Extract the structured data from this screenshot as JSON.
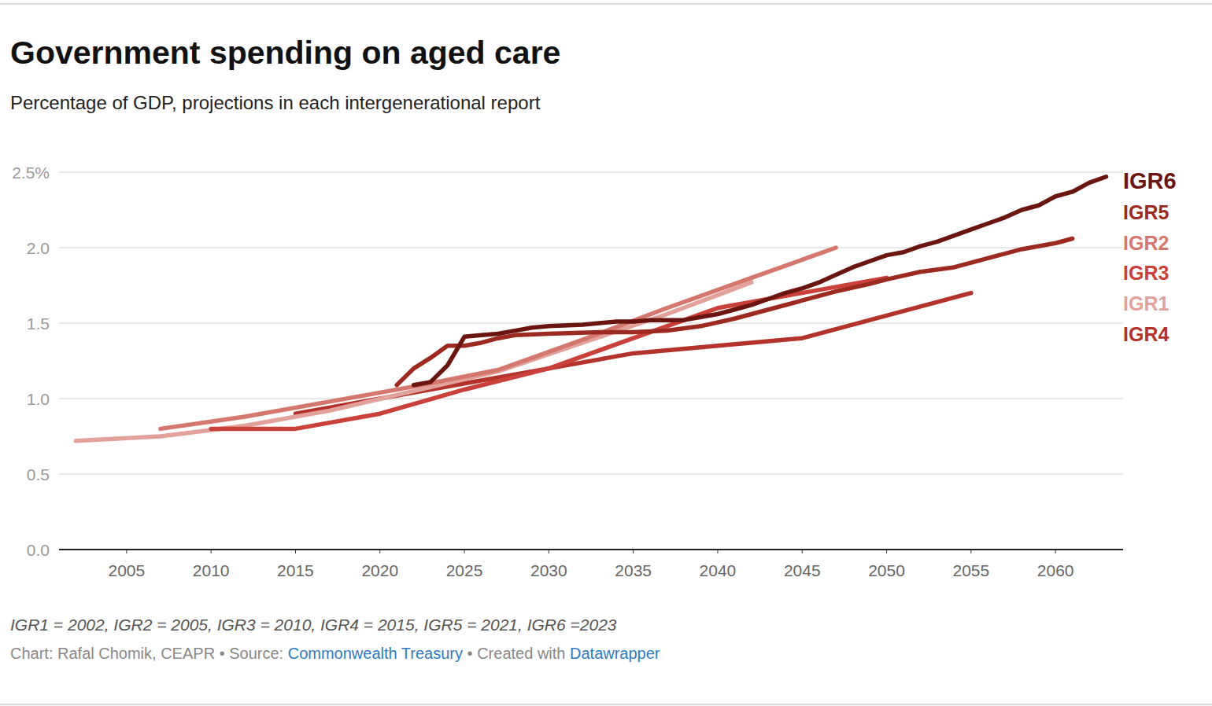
{
  "chart_data": {
    "type": "line",
    "title": "Government spending on aged care",
    "subtitle": "Percentage of GDP, projections in each intergenerational report",
    "note": "IGR1 = 2002, IGR2 = 2005, IGR3 = 2010, IGR4 = 2015, IGR5 = 2021, IGR6 =2023",
    "credit": "Chart: Rafal Chomik, CEAPR",
    "separator": "•",
    "source_label": "Source:",
    "source": "Commonwealth Treasury",
    "created_label": "Created with",
    "tool": "Datawrapper",
    "xlim": [
      2001,
      2064
    ],
    "xticks": [
      2005,
      2010,
      2015,
      2020,
      2025,
      2030,
      2035,
      2040,
      2045,
      2050,
      2055,
      2060
    ],
    "ylim": [
      0,
      2.5
    ],
    "yticks": [
      {
        "value": 0,
        "label": "0.0"
      },
      0.5,
      {
        "value": 1,
        "label": "1.0"
      },
      1.5,
      {
        "value": 2,
        "label": "2.0"
      },
      {
        "value": 2.5,
        "label": "2.5%"
      }
    ],
    "grid": true,
    "series": [
      {
        "name": "IGR6",
        "color": "#6b1510",
        "x": [
          2022,
          2023,
          2024,
          2025,
          2026,
          2027,
          2028,
          2029,
          2030,
          2032,
          2033,
          2034,
          2035,
          2036,
          2038,
          2039,
          2040,
          2041,
          2042,
          2043,
          2044,
          2045,
          2046,
          2047,
          2048,
          2049,
          2050,
          2051,
          2052,
          2053,
          2054,
          2055,
          2056,
          2057,
          2058,
          2059,
          2060,
          2061,
          2062,
          2063
        ],
        "values": [
          1.09,
          1.11,
          1.22,
          1.41,
          1.42,
          1.43,
          1.45,
          1.47,
          1.48,
          1.49,
          1.5,
          1.51,
          1.51,
          1.52,
          1.52,
          1.54,
          1.56,
          1.59,
          1.62,
          1.66,
          1.7,
          1.73,
          1.77,
          1.82,
          1.87,
          1.91,
          1.95,
          1.97,
          2.01,
          2.04,
          2.08,
          2.12,
          2.16,
          2.2,
          2.25,
          2.28,
          2.34,
          2.37,
          2.43,
          2.47
        ]
      },
      {
        "name": "IGR5",
        "color": "#9c2a20",
        "x": [
          2021,
          2022,
          2023,
          2024,
          2025,
          2026,
          2027,
          2028,
          2030,
          2033,
          2035,
          2037,
          2039,
          2041,
          2043,
          2045,
          2047,
          2049,
          2050,
          2052,
          2054,
          2056,
          2058,
          2060,
          2061
        ],
        "values": [
          1.09,
          1.2,
          1.27,
          1.35,
          1.35,
          1.37,
          1.4,
          1.42,
          1.43,
          1.44,
          1.44,
          1.45,
          1.48,
          1.53,
          1.59,
          1.65,
          1.71,
          1.76,
          1.79,
          1.84,
          1.87,
          1.93,
          1.99,
          2.03,
          2.06
        ]
      },
      {
        "name": "IGR2",
        "color": "#d4786f",
        "x": [
          2007,
          2012,
          2017,
          2022,
          2027,
          2032,
          2037,
          2042,
          2047
        ],
        "values": [
          0.8,
          0.88,
          0.98,
          1.08,
          1.19,
          1.39,
          1.6,
          1.8,
          2.0
        ]
      },
      {
        "name": "IGR3",
        "color": "#c9413a",
        "x": [
          2010,
          2015,
          2020,
          2025,
          2030,
          2035,
          2040,
          2045,
          2050
        ],
        "values": [
          0.8,
          0.8,
          0.9,
          1.06,
          1.2,
          1.4,
          1.6,
          1.7,
          1.8
        ]
      },
      {
        "name": "IGR1",
        "color": "#e2a29b",
        "x": [
          2002,
          2007,
          2012,
          2017,
          2022,
          2027,
          2032,
          2037,
          2042
        ],
        "values": [
          0.72,
          0.75,
          0.82,
          0.92,
          1.05,
          1.18,
          1.37,
          1.56,
          1.77
        ]
      },
      {
        "name": "IGR4",
        "color": "#b3322b",
        "x": [
          2015,
          2020,
          2025,
          2030,
          2035,
          2040,
          2045,
          2050,
          2055
        ],
        "values": [
          0.9,
          1.0,
          1.1,
          1.2,
          1.3,
          1.35,
          1.4,
          1.55,
          1.7
        ]
      }
    ]
  }
}
